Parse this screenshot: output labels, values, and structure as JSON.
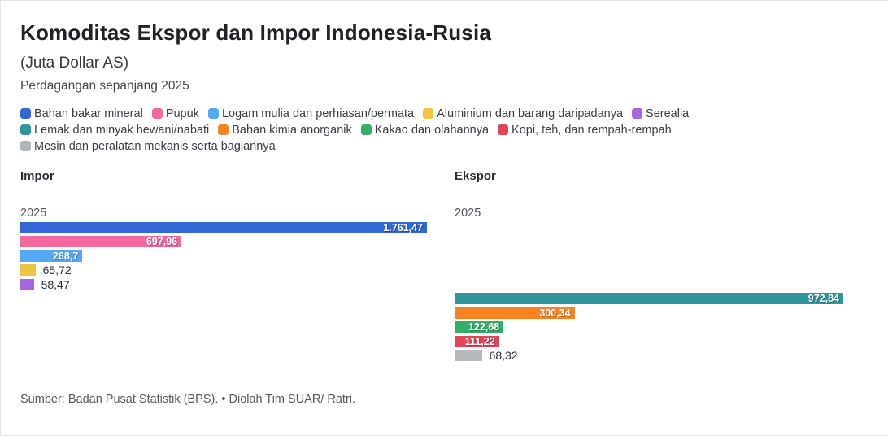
{
  "title": "Komoditas Ekspor dan Impor Indonesia-Rusia",
  "subtitle": "(Juta Dollar AS)",
  "description": "Perdagangan sepanjang 2025",
  "footer": "Sumber: Badan Pusat Statistik (BPS). • Diolah Tim SUAR/ Ratri.",
  "legend": [
    {
      "key": "bahan-bakar-mineral",
      "label": "Bahan bakar mineral",
      "color": "#3366d6"
    },
    {
      "key": "pupuk",
      "label": "Pupuk",
      "color": "#f2689f"
    },
    {
      "key": "logam-mulia",
      "label": "Logam mulia dan perhiasan/permata",
      "color": "#55a9f2"
    },
    {
      "key": "aluminium",
      "label": "Aluminium dan barang daripadanya",
      "color": "#efc440"
    },
    {
      "key": "serealia",
      "label": "Serealia",
      "color": "#a863de"
    },
    {
      "key": "lemak-minyak",
      "label": "Lemak dan minyak hewani/nabati",
      "color": "#2f969c"
    },
    {
      "key": "bahan-kimia-anorganik",
      "label": "Bahan kimia anorganik",
      "color": "#f88321"
    },
    {
      "key": "kakao",
      "label": "Kakao dan olahannya",
      "color": "#35ae68"
    },
    {
      "key": "kopi-teh-rempah",
      "label": "Kopi, teh, dan rempah-rempah",
      "color": "#e0455a"
    },
    {
      "key": "mesin-peralatan",
      "label": "Mesin dan peralatan mekanis serta bagiannya",
      "color": "#b1b4b8"
    }
  ],
  "chart_data": {
    "type": "bar",
    "orientation": "horizontal",
    "unit": "Juta Dollar AS",
    "total_rows": 10,
    "panels": [
      {
        "title": "Impor",
        "year_label": "2025",
        "axis_max": 1761.47,
        "rows": [
          {
            "row_index": 0,
            "key": "bahan-bakar-mineral",
            "category": "Bahan bakar mineral",
            "value": 1761.47,
            "label": "1.761,47",
            "color": "#3366d6",
            "label_inside": true
          },
          {
            "row_index": 1,
            "key": "pupuk",
            "category": "Pupuk",
            "value": 697.96,
            "label": "697,96",
            "color": "#f2689f",
            "label_inside": true
          },
          {
            "row_index": 2,
            "key": "logam-mulia",
            "category": "Logam mulia dan perhiasan/permata",
            "value": 268.7,
            "label": "268,7",
            "color": "#55a9f2",
            "label_inside": true
          },
          {
            "row_index": 3,
            "key": "aluminium",
            "category": "Aluminium dan barang daripadanya",
            "value": 65.72,
            "label": "65,72",
            "color": "#efc440",
            "label_inside": false
          },
          {
            "row_index": 4,
            "key": "serealia",
            "category": "Serealia",
            "value": 58.47,
            "label": "58,47",
            "color": "#a863de",
            "label_inside": false
          }
        ]
      },
      {
        "title": "Ekspor",
        "year_label": "2025",
        "axis_max": 972.84,
        "rows": [
          {
            "row_index": 5,
            "key": "lemak-minyak",
            "category": "Lemak dan minyak hewani/nabati",
            "value": 972.84,
            "label": "972,84",
            "color": "#2f969c",
            "label_inside": true
          },
          {
            "row_index": 6,
            "key": "bahan-kimia-anorganik",
            "category": "Bahan kimia anorganik",
            "value": 300.34,
            "label": "300,34",
            "color": "#f88321",
            "label_inside": true
          },
          {
            "row_index": 7,
            "key": "kakao",
            "category": "Kakao dan olahannya",
            "value": 122.68,
            "label": "122,68",
            "color": "#35ae68",
            "label_inside": true
          },
          {
            "row_index": 8,
            "key": "kopi-teh-rempah",
            "category": "Kopi, teh, dan rempah-rempah",
            "value": 111.22,
            "label": "111,22",
            "color": "#e0455a",
            "label_inside": true
          },
          {
            "row_index": 9,
            "key": "mesin-peralatan",
            "category": "Mesin dan peralatan mekanis serta bagiannya",
            "value": 68.32,
            "label": "68,32",
            "color": "#b7babd",
            "label_inside": false
          }
        ]
      }
    ]
  }
}
